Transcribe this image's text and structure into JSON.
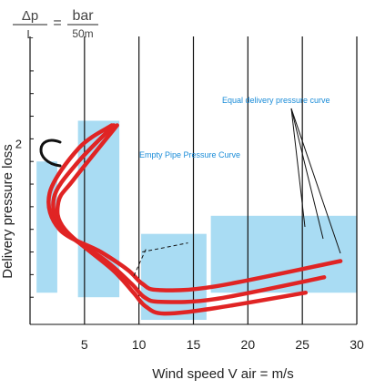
{
  "chart_data": {
    "type": "line",
    "unit_label": {
      "numerator_left": "Δp",
      "denominator_left": "L",
      "equals": "=",
      "numerator_right": "bar",
      "denominator_right": "50m"
    },
    "xlabel": "Wind speed V air = m/s",
    "ylabel": "Delivery pressure loss",
    "xlim": [
      0,
      30
    ],
    "ylim": [
      0,
      3
    ],
    "x_ticks": [
      "5",
      "10",
      "15",
      "20",
      "25",
      "30"
    ],
    "x_tick_values": [
      5,
      10,
      15,
      20,
      25,
      30
    ],
    "y_tick_label": "2",
    "y_tick_label_value": 2,
    "grid": "vertical",
    "annotations": {
      "equal_delivery": "Equal delivery pressure curve",
      "empty_pipe": "Empty Pipe Pressure Curve"
    },
    "colors": {
      "curve": "#e02424",
      "band": "#a9dcf3",
      "annotation": "#1a8cd8"
    },
    "bands": [
      {
        "x": [
          0.6,
          2.5
        ],
        "y": [
          0.35,
          1.8
        ]
      },
      {
        "x": [
          4.4,
          8.2
        ],
        "y": [
          0.3,
          2.25
        ]
      },
      {
        "x": [
          10.2,
          16.2
        ],
        "y": [
          0.05,
          1.0
        ]
      },
      {
        "x": [
          16.6,
          30.0
        ],
        "y": [
          0.35,
          1.2
        ]
      }
    ],
    "series": [
      {
        "points": [
          [
            8,
            2.2
          ],
          [
            4,
            1.6
          ],
          [
            2.6,
            1.35
          ],
          [
            3.2,
            1.05
          ],
          [
            7.6,
            0.6
          ],
          [
            9.5,
            0.35
          ],
          [
            10.6,
            0.2
          ],
          [
            12.3,
            0.12
          ],
          [
            17,
            0.18
          ],
          [
            25.3,
            0.35
          ]
        ]
      },
      {
        "points": [
          [
            7.7,
            2.2
          ],
          [
            4.3,
            1.78
          ],
          [
            2.2,
            1.4
          ],
          [
            3.0,
            1.05
          ],
          [
            7.0,
            0.7
          ],
          [
            9.3,
            0.45
          ],
          [
            10.5,
            0.3
          ],
          [
            12.0,
            0.25
          ],
          [
            17,
            0.28
          ],
          [
            27.0,
            0.52
          ]
        ]
      },
      {
        "points": [
          [
            7.5,
            2.2
          ],
          [
            4.5,
            1.95
          ],
          [
            1.8,
            1.45
          ],
          [
            2.7,
            1.05
          ],
          [
            6.5,
            0.8
          ],
          [
            9.0,
            0.6
          ],
          [
            10.3,
            0.45
          ],
          [
            11.8,
            0.38
          ],
          [
            17,
            0.42
          ],
          [
            28.5,
            0.7
          ]
        ]
      }
    ],
    "empty_pipe_curve": [
      [
        10.3,
        0.8
      ],
      [
        14.5,
        0.9
      ]
    ]
  }
}
